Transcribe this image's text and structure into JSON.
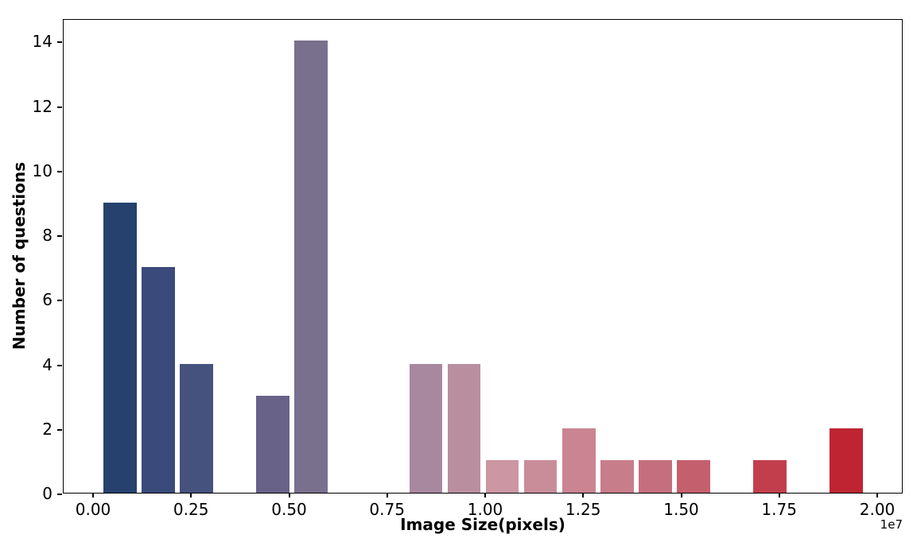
{
  "figure": {
    "background": "#ffffff",
    "xlabel": "Image Size(pixels)",
    "ylabel": "Number of questions",
    "axis_offset_label": "1e7"
  },
  "chart_data": {
    "type": "bar",
    "subtype": "histogram",
    "title": "",
    "xlabel": "Image Size(pixels)",
    "ylabel": "Number of questions",
    "x_unit_multiplier": "1e7",
    "bin_edges_1e7": [
      0.02,
      0.1175,
      0.215,
      0.3125,
      0.41,
      0.5075,
      0.605,
      0.7025,
      0.8,
      0.8975,
      0.995,
      1.0925,
      1.19,
      1.2875,
      1.385,
      1.4825,
      1.58,
      1.6775,
      1.775,
      1.8725,
      1.97
    ],
    "counts": [
      9,
      7,
      4,
      0,
      3,
      14,
      0,
      0,
      4,
      4,
      1,
      1,
      2,
      1,
      1,
      1,
      0,
      1,
      0,
      2
    ],
    "bar_colors": [
      "#27416f",
      "#3a4a7a",
      "#46527e",
      "#575a83",
      "#686288",
      "#78708d",
      "#8a7a95",
      "#9a819a",
      "#a8889f",
      "#b98f9f",
      "#cc96a2",
      "#c98d9a",
      "#ca8492",
      "#c87d8b",
      "#c56f7e",
      "#c45f6e",
      "#c34f5d",
      "#c23e4d",
      "#c03140",
      "#bf2433"
    ],
    "xlim": [
      -0.075,
      2.067
    ],
    "ylim": [
      0,
      14.7
    ],
    "x_ticks": {
      "values": [
        0,
        0.25,
        0.5,
        0.75,
        1.0,
        1.25,
        1.5,
        1.75,
        2.0
      ],
      "labels": [
        "0.00",
        "0.25",
        "0.50",
        "0.75",
        "1.00",
        "1.25",
        "1.50",
        "1.75",
        "2.00"
      ]
    },
    "y_ticks": {
      "values": [
        0,
        2,
        4,
        6,
        8,
        10,
        12,
        14
      ],
      "labels": [
        "0",
        "2",
        "4",
        "6",
        "8",
        "10",
        "12",
        "14"
      ]
    },
    "bar_shrink": 0.87,
    "grid": false,
    "legend": null,
    "spine_color": "#000000",
    "tick_color": "#000000"
  }
}
